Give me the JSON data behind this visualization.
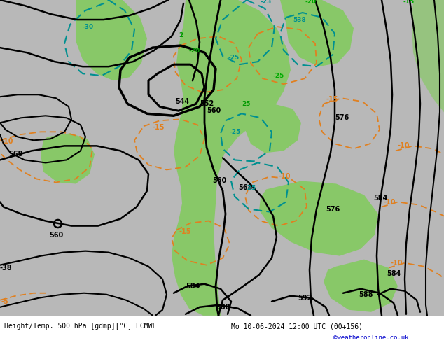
{
  "title_left": "Height/Temp. 500 hPa [gdmp][°C] ECMWF",
  "title_right": "Mo 10-06-2024 12:00 UTC (00+156)",
  "watermark": "©weatheronline.co.uk",
  "bg_color": "#b8b8b8",
  "green_color": "#88c868",
  "fig_width": 6.34,
  "fig_height": 4.9,
  "dpi": 100
}
